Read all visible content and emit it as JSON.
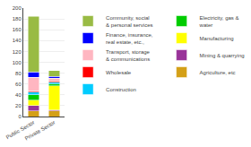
{
  "chart_data": {
    "type": "bar",
    "stacked": true,
    "categories": [
      "Public Sector",
      "Private Sector"
    ],
    "series": [
      {
        "name": "Agriculture, etc",
        "color": "#D4A017",
        "values": [
          10,
          10
        ]
      },
      {
        "name": "Mining & quarrying",
        "color": "#993399",
        "values": [
          10,
          2
        ]
      },
      {
        "name": "Manufacturing",
        "color": "#FFFF00",
        "values": [
          10,
          45
        ]
      },
      {
        "name": "Electricity, gas &\nwater",
        "color": "#00CC00",
        "values": [
          10,
          3
        ]
      },
      {
        "name": "Construction",
        "color": "#00CCFF",
        "values": [
          5,
          3
        ]
      },
      {
        "name": "Wholesale",
        "color": "#FF0000",
        "values": [
          2,
          3
        ]
      },
      {
        "name": "Transport, storage\n& communications",
        "color": "#FFB6C1",
        "values": [
          25,
          5
        ]
      },
      {
        "name": "Finance, insurance,\nreal estate, etc.,",
        "color": "#0000FF",
        "values": [
          10,
          3
        ]
      },
      {
        "name": "Community, social\n& personal services",
        "color": "#99BB44",
        "values": [
          103,
          11
        ]
      }
    ],
    "ylim": [
      0,
      200
    ],
    "yticks": [
      0,
      20,
      40,
      60,
      80,
      100,
      120,
      140,
      160,
      180,
      200
    ],
    "grid": true,
    "legend": "right"
  }
}
